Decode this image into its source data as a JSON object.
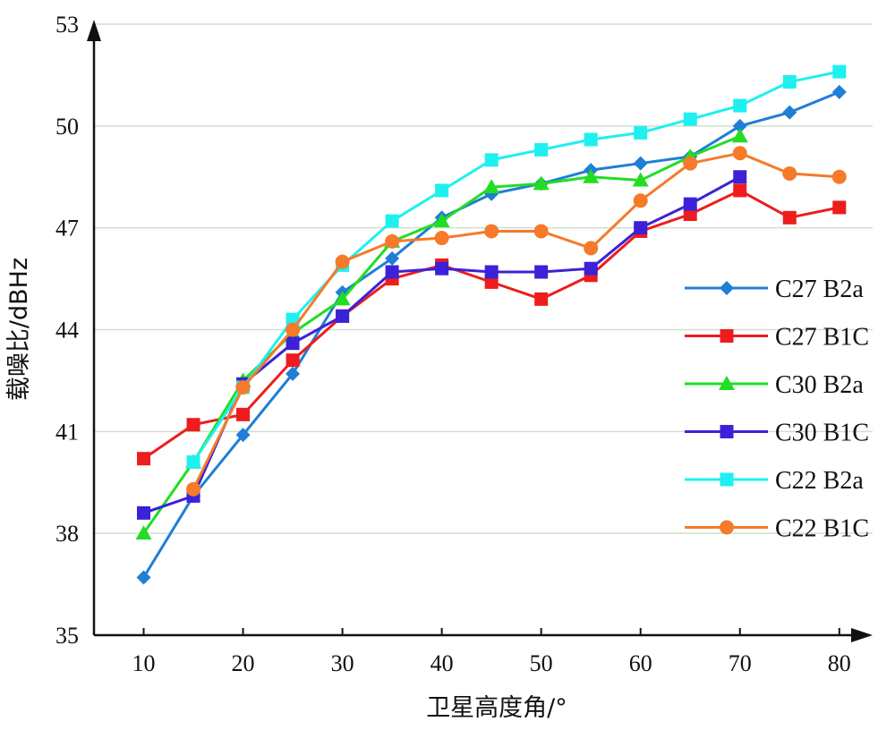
{
  "chart_data": {
    "type": "line",
    "xlabel": "卫星高度角/°",
    "ylabel": "载噪比/dBHz",
    "xlim": [
      5,
      82
    ],
    "ylim": [
      35,
      53
    ],
    "xticks": [
      10,
      20,
      30,
      40,
      50,
      60,
      70,
      80
    ],
    "yticks": [
      35,
      38,
      41,
      44,
      47,
      50,
      53
    ],
    "grid": "horizontal",
    "legend_position": "right",
    "series": [
      {
        "name": "C27 B2a",
        "color": "#1f7ed6",
        "marker": "diamond",
        "x": [
          10,
          15,
          20,
          25,
          30,
          35,
          40,
          45,
          50,
          55,
          60,
          65,
          70,
          75,
          80
        ],
        "y": [
          36.7,
          39.1,
          40.9,
          42.7,
          45.1,
          46.1,
          47.3,
          48.0,
          48.3,
          48.7,
          48.9,
          49.1,
          50.0,
          50.4,
          51.0
        ]
      },
      {
        "name": "C27 B1C",
        "color": "#ee1c1c",
        "marker": "square",
        "x": [
          10,
          15,
          20,
          25,
          30,
          35,
          40,
          45,
          50,
          55,
          60,
          65,
          70,
          75,
          80
        ],
        "y": [
          40.2,
          41.2,
          41.5,
          43.1,
          44.4,
          45.5,
          45.9,
          45.4,
          44.9,
          45.6,
          46.9,
          47.4,
          48.1,
          47.3,
          47.6
        ]
      },
      {
        "name": "C30 B2a",
        "color": "#22dd22",
        "marker": "triangle",
        "x": [
          10,
          15,
          20,
          25,
          30,
          35,
          40,
          45,
          50,
          55,
          60,
          65,
          70
        ],
        "y": [
          38.0,
          40.1,
          42.5,
          43.9,
          44.9,
          46.6,
          47.2,
          48.2,
          48.3,
          48.5,
          48.4,
          49.1,
          49.7
        ]
      },
      {
        "name": "C30 B1C",
        "color": "#3b22d8",
        "marker": "square",
        "x": [
          10,
          15,
          20,
          25,
          30,
          35,
          40,
          45,
          50,
          55,
          60,
          65,
          70
        ],
        "y": [
          38.6,
          39.1,
          42.4,
          43.6,
          44.4,
          45.7,
          45.8,
          45.7,
          45.7,
          45.8,
          47.0,
          47.7,
          48.5
        ]
      },
      {
        "name": "C22 B2a",
        "color": "#1ef0f0",
        "marker": "square",
        "x": [
          10,
          15,
          20,
          25,
          30,
          35,
          40,
          45,
          50,
          55,
          60,
          65,
          70,
          75,
          80
        ],
        "y": [
          null,
          40.1,
          42.3,
          44.3,
          45.9,
          47.2,
          48.1,
          49.0,
          49.3,
          49.6,
          49.8,
          50.2,
          50.6,
          51.3,
          51.6
        ]
      },
      {
        "name": "C22 B1C",
        "color": "#f57a2a",
        "marker": "circle",
        "x": [
          10,
          15,
          20,
          25,
          30,
          35,
          40,
          45,
          50,
          55,
          60,
          65,
          70,
          75,
          80
        ],
        "y": [
          null,
          39.3,
          42.3,
          44.0,
          46.0,
          46.6,
          46.7,
          46.9,
          46.9,
          46.4,
          47.8,
          48.9,
          49.2,
          48.6,
          48.5
        ]
      }
    ]
  }
}
